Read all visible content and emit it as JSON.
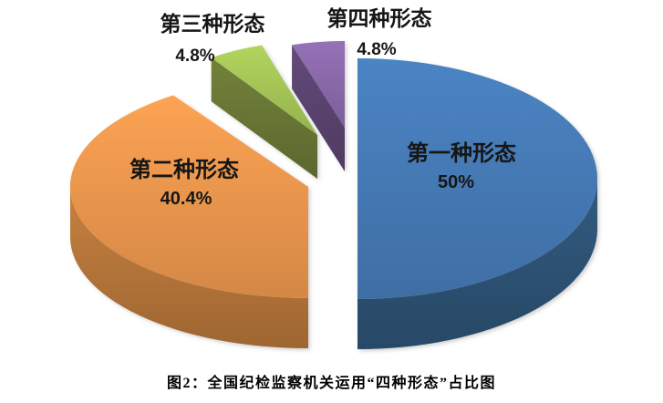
{
  "page": {
    "background_color": "#ffffff"
  },
  "caption": {
    "text": "图2：全国纪检监察机关运用“四种形态”占比图"
  },
  "chart_data": {
    "type": "pie",
    "style": "3d-exploded-pie",
    "title": "图2：全国纪检监察机关运用“四种形态”占比图",
    "legend_position": "none",
    "data_label_format": "category name + percentage",
    "rotation_start": "12-oclock-clockwise",
    "slices": [
      {
        "label": "第一种形态",
        "value_pct": 50,
        "display_value": "50%",
        "color_top": "#4478B2",
        "color_side": "#2F5679"
      },
      {
        "label": "第二种形态",
        "value_pct": 40.4,
        "display_value": "40.4%",
        "color_top": "#E6944C",
        "color_side": "#BC7A3C"
      },
      {
        "label": "第三种形态",
        "value_pct": 4.8,
        "display_value": "4.8%",
        "color_top": "#A2C155",
        "color_side": "#6C7B37"
      },
      {
        "label": "第四种形态",
        "value_pct": 4.8,
        "display_value": "4.8%",
        "color_top": "#8767A6",
        "color_side": "#5D4673"
      }
    ]
  }
}
